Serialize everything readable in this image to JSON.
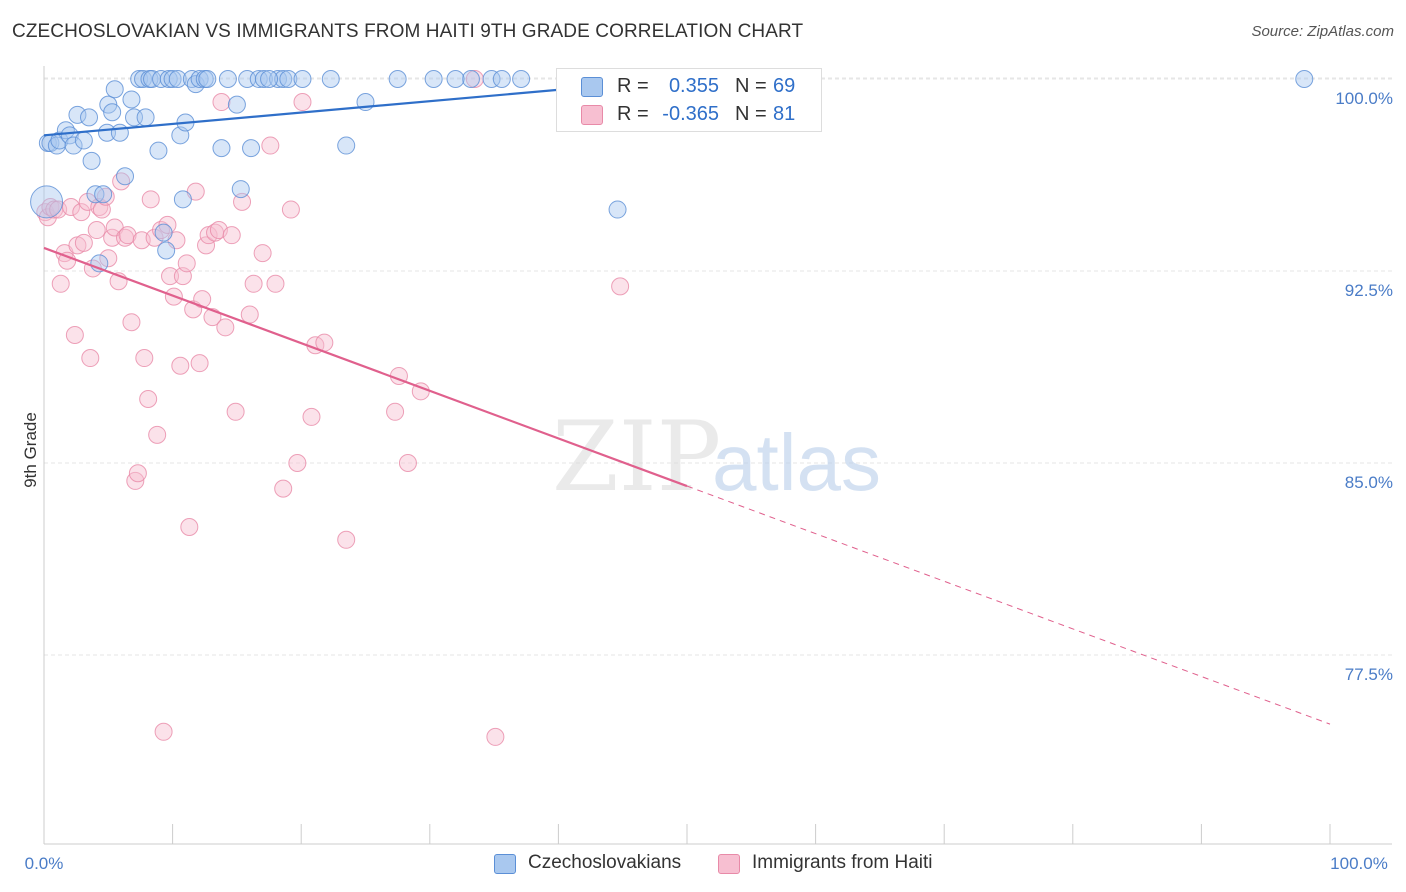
{
  "title": "CZECHOSLOVAKIAN VS IMMIGRANTS FROM HAITI 9TH GRADE CORRELATION CHART",
  "source": "Source: ZipAtlas.com",
  "watermark": {
    "zip": "ZIP",
    "atlas": "atlas"
  },
  "legend_top": {
    "rows": [
      {
        "r_label": "R =",
        "r_value": "0.355",
        "n_label": "N =",
        "n_value": "69"
      },
      {
        "r_label": "R =",
        "r_value": "-0.365",
        "n_label": "N =",
        "n_value": "81"
      }
    ]
  },
  "legend_bottom": [
    "Czechoslovakians",
    "Immigrants from Haiti"
  ],
  "colors": {
    "blue_fill": "#a9c8ef",
    "blue_stroke": "#5b8fd6",
    "blue_line": "#2f6fc9",
    "pink_fill": "#f7bfd1",
    "pink_stroke": "#e88aa8",
    "pink_line": "#e0608d",
    "axis_text": "#4a7cc7",
    "grid": "#e6e6e6"
  },
  "chart_data": {
    "type": "scatter",
    "title": "CZECHOSLOVAKIAN VS IMMIGRANTS FROM HAITI 9TH GRADE CORRELATION CHART",
    "xlabel": "",
    "ylabel": "9th Grade",
    "xlim": [
      0,
      100
    ],
    "ylim": [
      71.5,
      101.5
    ],
    "x_tick_labels": [
      "0.0%",
      "100.0%"
    ],
    "y_ticks": [
      77.5,
      85.0,
      92.5,
      100.0
    ],
    "y_tick_labels": [
      "77.5%",
      "85.0%",
      "92.5%",
      "100.0%"
    ],
    "grid": true,
    "legend_position": "top-center",
    "series": [
      {
        "name": "Czechoslovakians",
        "color": "#a9c8ef",
        "r": 0.355,
        "n": 69,
        "trend": {
          "x": [
            0,
            45
          ],
          "y": [
            97.8,
            99.8
          ],
          "style": "solid"
        },
        "points": [
          [
            0.2,
            95.2
          ],
          [
            0.3,
            97.5
          ],
          [
            0.5,
            97.5
          ],
          [
            1.0,
            97.4
          ],
          [
            1.2,
            97.6
          ],
          [
            1.7,
            98.0
          ],
          [
            2.0,
            97.8
          ],
          [
            2.3,
            97.4
          ],
          [
            2.6,
            98.6
          ],
          [
            3.1,
            97.6
          ],
          [
            3.5,
            98.5
          ],
          [
            3.7,
            96.8
          ],
          [
            4.0,
            95.5
          ],
          [
            4.3,
            92.8
          ],
          [
            4.6,
            95.5
          ],
          [
            4.9,
            97.9
          ],
          [
            5.0,
            99.0
          ],
          [
            5.3,
            98.7
          ],
          [
            5.5,
            99.6
          ],
          [
            5.9,
            97.9
          ],
          [
            6.3,
            96.2
          ],
          [
            6.8,
            99.2
          ],
          [
            7.0,
            98.5
          ],
          [
            7.4,
            100.0
          ],
          [
            7.7,
            100.0
          ],
          [
            7.9,
            98.5
          ],
          [
            8.2,
            100.0
          ],
          [
            8.4,
            100.0
          ],
          [
            8.9,
            97.2
          ],
          [
            9.1,
            100.0
          ],
          [
            9.3,
            94.0
          ],
          [
            9.5,
            93.3
          ],
          [
            9.7,
            100.0
          ],
          [
            10.0,
            100.0
          ],
          [
            10.4,
            100.0
          ],
          [
            10.6,
            97.8
          ],
          [
            10.8,
            95.3
          ],
          [
            11.0,
            98.3
          ],
          [
            11.5,
            100.0
          ],
          [
            11.8,
            99.8
          ],
          [
            12.1,
            100.0
          ],
          [
            12.5,
            100.0
          ],
          [
            12.7,
            100.0
          ],
          [
            13.8,
            97.3
          ],
          [
            14.3,
            100.0
          ],
          [
            15.0,
            99.0
          ],
          [
            15.3,
            95.7
          ],
          [
            15.8,
            100.0
          ],
          [
            16.1,
            97.3
          ],
          [
            16.7,
            100.0
          ],
          [
            17.1,
            100.0
          ],
          [
            18.2,
            100.0
          ],
          [
            18.6,
            100.0
          ],
          [
            19.0,
            100.0
          ],
          [
            20.1,
            100.0
          ],
          [
            17.5,
            100.0
          ],
          [
            22.3,
            100.0
          ],
          [
            23.5,
            97.4
          ],
          [
            25.0,
            99.1
          ],
          [
            27.5,
            100.0
          ],
          [
            30.3,
            100.0
          ],
          [
            33.2,
            100.0
          ],
          [
            34.8,
            100.0
          ],
          [
            35.6,
            100.0
          ],
          [
            37.1,
            100.0
          ],
          [
            32.0,
            100.0
          ],
          [
            41.2,
            99.4
          ],
          [
            44.6,
            94.9
          ],
          [
            98.0,
            100.0
          ]
        ]
      },
      {
        "name": "Immigrants from Haiti",
        "color": "#f7bfd1",
        "r": -0.365,
        "n": 81,
        "trend": {
          "x": [
            0,
            50,
            100
          ],
          "y": [
            93.4,
            84.1,
            74.8
          ],
          "style": "solid-then-dashed"
        },
        "points": [
          [
            0.1,
            94.8
          ],
          [
            0.3,
            94.6
          ],
          [
            0.5,
            95.0
          ],
          [
            0.8,
            94.9
          ],
          [
            1.1,
            94.9
          ],
          [
            1.3,
            92.0
          ],
          [
            1.6,
            93.2
          ],
          [
            1.8,
            92.9
          ],
          [
            2.1,
            95.0
          ],
          [
            2.4,
            90.0
          ],
          [
            2.6,
            93.5
          ],
          [
            2.9,
            94.8
          ],
          [
            3.1,
            93.6
          ],
          [
            3.4,
            95.2
          ],
          [
            3.6,
            89.1
          ],
          [
            3.8,
            92.6
          ],
          [
            4.1,
            94.1
          ],
          [
            4.3,
            95.0
          ],
          [
            4.5,
            94.9
          ],
          [
            4.8,
            95.4
          ],
          [
            5.0,
            93.0
          ],
          [
            5.3,
            93.8
          ],
          [
            5.5,
            94.2
          ],
          [
            5.8,
            92.1
          ],
          [
            6.0,
            96.0
          ],
          [
            6.3,
            93.8
          ],
          [
            6.5,
            93.9
          ],
          [
            6.8,
            90.5
          ],
          [
            7.1,
            84.3
          ],
          [
            7.3,
            84.6
          ],
          [
            7.6,
            93.7
          ],
          [
            7.8,
            89.1
          ],
          [
            8.1,
            87.5
          ],
          [
            8.3,
            95.3
          ],
          [
            8.6,
            93.8
          ],
          [
            8.8,
            86.1
          ],
          [
            9.1,
            94.1
          ],
          [
            9.3,
            74.5
          ],
          [
            9.6,
            94.3
          ],
          [
            9.8,
            92.3
          ],
          [
            10.1,
            91.5
          ],
          [
            10.3,
            93.7
          ],
          [
            10.6,
            88.8
          ],
          [
            10.8,
            92.3
          ],
          [
            11.1,
            92.8
          ],
          [
            11.3,
            82.5
          ],
          [
            11.6,
            91.0
          ],
          [
            11.8,
            95.6
          ],
          [
            12.1,
            88.9
          ],
          [
            12.3,
            91.4
          ],
          [
            12.6,
            93.5
          ],
          [
            12.8,
            93.9
          ],
          [
            13.1,
            90.7
          ],
          [
            13.3,
            94.0
          ],
          [
            13.6,
            94.1
          ],
          [
            13.8,
            99.1
          ],
          [
            14.1,
            90.3
          ],
          [
            14.6,
            93.9
          ],
          [
            14.9,
            87.0
          ],
          [
            15.4,
            95.2
          ],
          [
            16.0,
            90.8
          ],
          [
            16.3,
            92.0
          ],
          [
            17.0,
            93.2
          ],
          [
            17.6,
            97.4
          ],
          [
            18.0,
            92.0
          ],
          [
            18.6,
            84.0
          ],
          [
            19.2,
            94.9
          ],
          [
            19.7,
            85.0
          ],
          [
            20.1,
            99.1
          ],
          [
            20.8,
            86.8
          ],
          [
            21.1,
            89.6
          ],
          [
            21.8,
            89.7
          ],
          [
            23.5,
            82.0
          ],
          [
            27.3,
            87.0
          ],
          [
            27.6,
            88.4
          ],
          [
            28.3,
            85.0
          ],
          [
            29.3,
            87.8
          ],
          [
            33.5,
            100.0
          ],
          [
            35.1,
            74.3
          ],
          [
            44.2,
            100.0
          ],
          [
            44.8,
            91.9
          ]
        ]
      }
    ]
  }
}
